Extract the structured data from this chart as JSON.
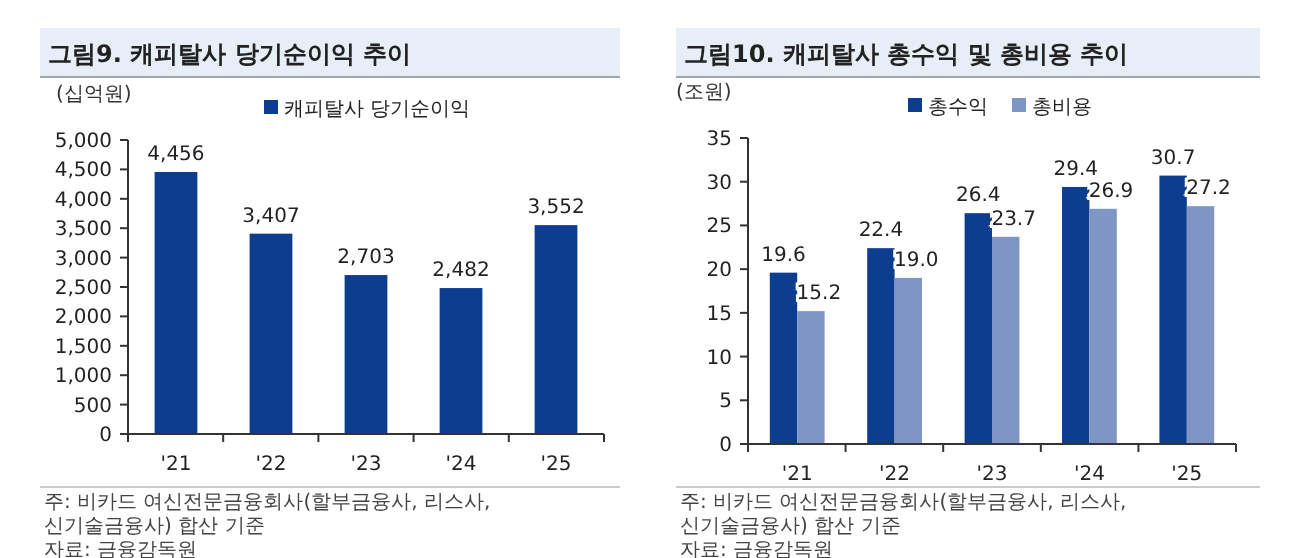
{
  "chart_data": [
    {
      "type": "bar",
      "title": "그림9. 캐피탈사 당기순이익 추이",
      "ylabel": "(십억원)",
      "categories": [
        "'21",
        "'22",
        "'23",
        "'24",
        "'25"
      ],
      "series": [
        {
          "name": "캐피탈사 당기순이익",
          "color": "#0c3d8f",
          "values": [
            4456,
            3407,
            2703,
            2482,
            3552
          ]
        }
      ],
      "ylim": [
        0,
        5000
      ],
      "yticks": [
        0,
        {
          "value": 500,
          "label": "500"
        },
        {
          "value": 1000,
          "label": "1,000"
        },
        {
          "value": 1500,
          "label": "1,500"
        },
        {
          "value": 2000,
          "label": "2,000"
        },
        {
          "value": 2500,
          "label": "2,500"
        },
        {
          "value": 3000,
          "label": "3,000"
        },
        {
          "value": 3500,
          "label": "3,500"
        },
        {
          "value": 4000,
          "label": "4,000"
        },
        {
          "value": 4500,
          "label": "4,500"
        },
        {
          "value": 5000,
          "label": "5,000"
        }
      ],
      "value_labels": [
        "4,456",
        "3,407",
        "2,703",
        "2,482",
        "3,552"
      ],
      "legend": "top",
      "grid": false,
      "annotations": [
        "주: 비카드 여신전문금융회사(할부금융사, 리스사, 신기술금융사) 합산 기준",
        "자료: 금융감독원"
      ]
    },
    {
      "type": "bar",
      "title": "그림10. 캐피탈사 총수익 및 총비용 추이",
      "ylabel": "(조원)",
      "categories": [
        "'21",
        "'22",
        "'23",
        "'24",
        "'25"
      ],
      "series": [
        {
          "name": "총수익",
          "color": "#0c3d8f",
          "values": [
            19.6,
            22.4,
            26.4,
            29.4,
            30.7
          ]
        },
        {
          "name": "총비용",
          "color": "#7f95c4",
          "values": [
            15.2,
            19.0,
            23.7,
            26.9,
            27.2
          ]
        }
      ],
      "ylim": [
        0,
        35
      ],
      "yticks": [
        0,
        5,
        10,
        15,
        20,
        25,
        30,
        35
      ],
      "value_labels": [
        [
          "19.6",
          "22.4",
          "26.4",
          "29.4",
          "30.7"
        ],
        [
          "15.2",
          "19.0",
          "23.7",
          "26.9",
          "27.2"
        ]
      ],
      "legend": "top",
      "grid": false,
      "annotations": [
        "주: 비카드 여신전문금융회사(할부금융사, 리스사, 신기술금융사) 합산 기준",
        "자료: 금융감독원"
      ]
    }
  ]
}
